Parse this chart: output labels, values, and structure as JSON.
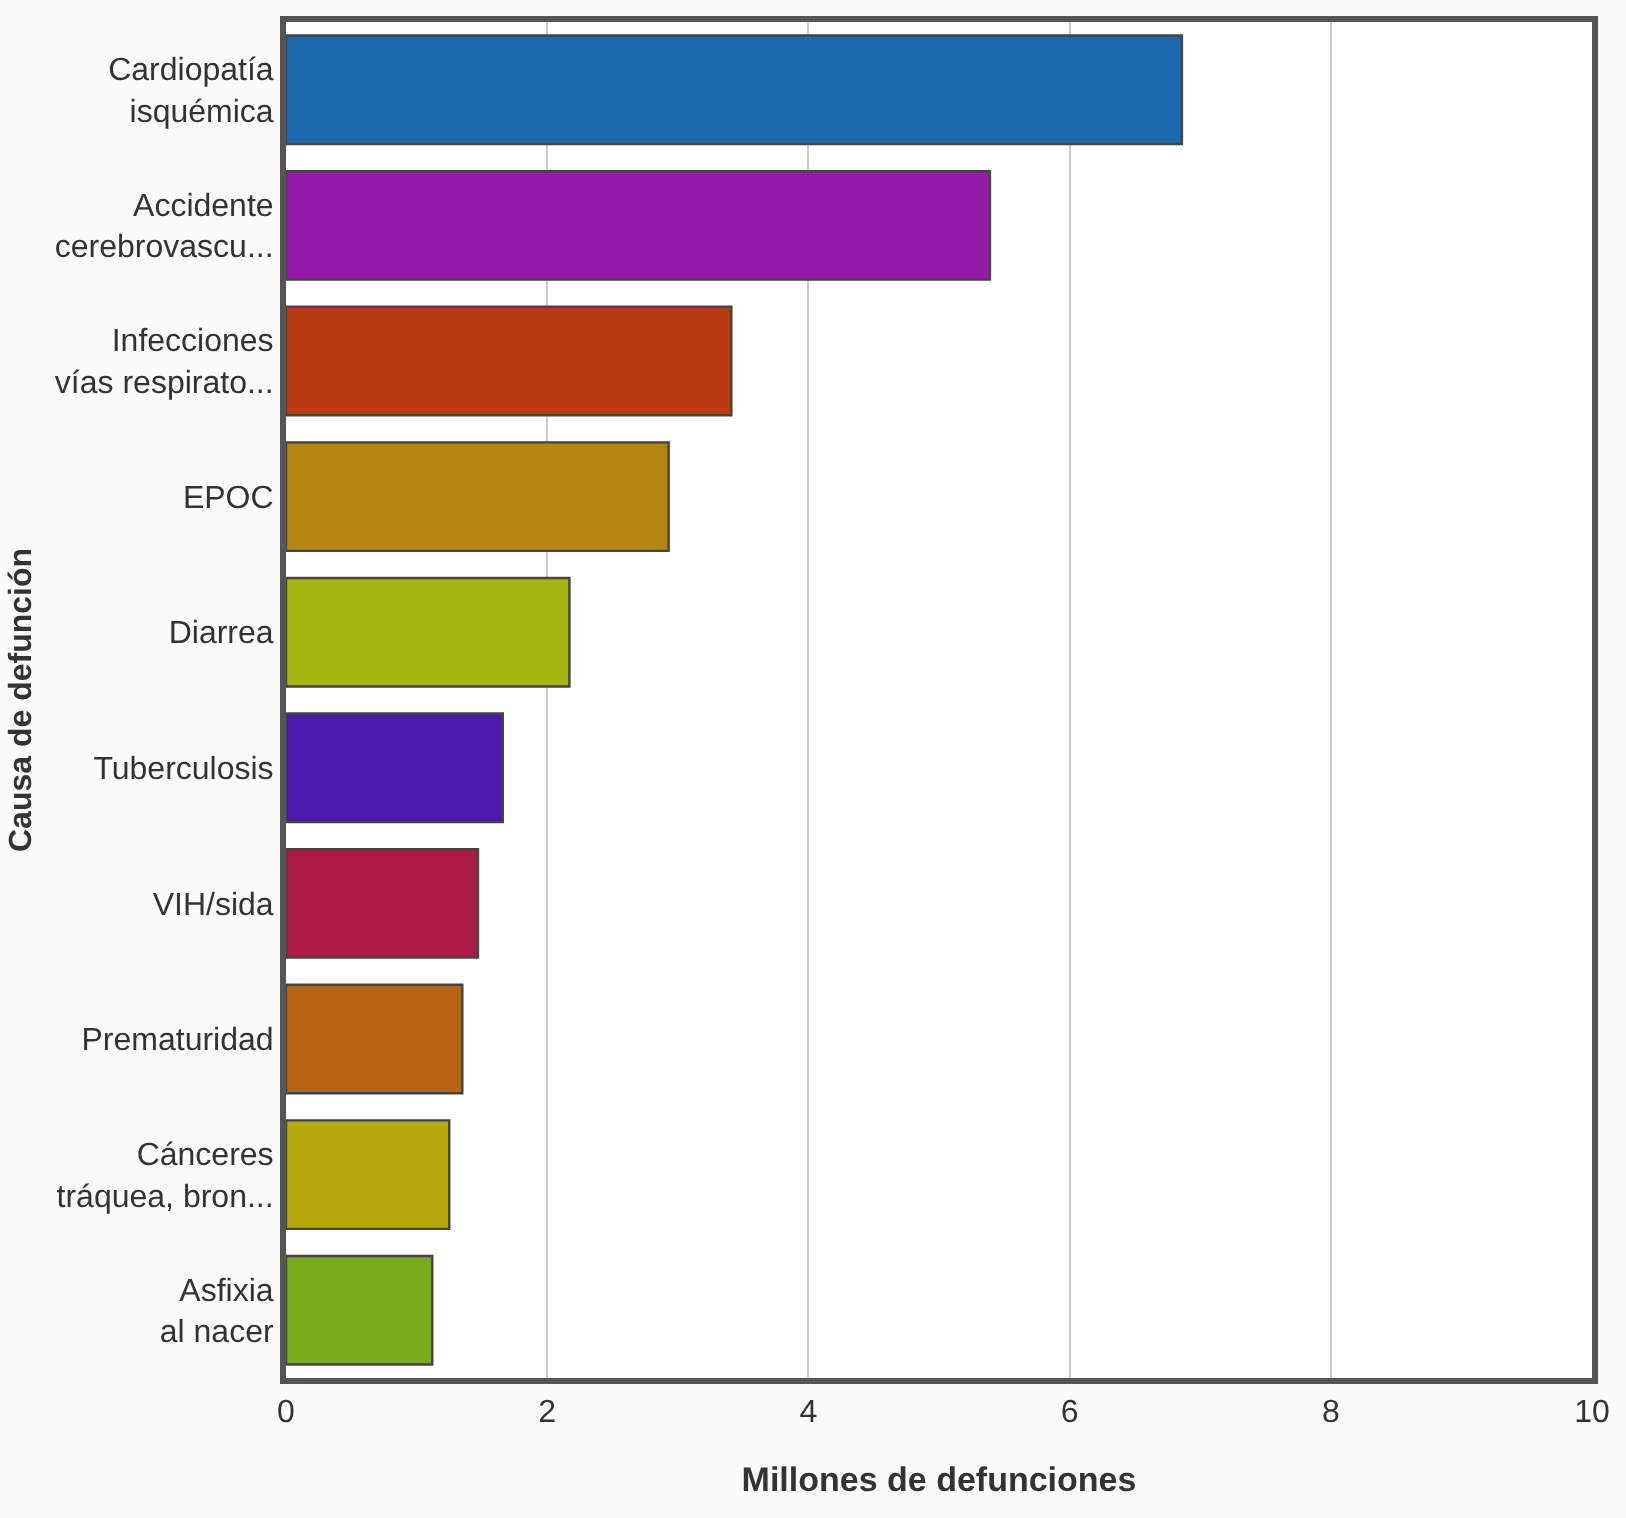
{
  "chart_data": {
    "type": "bar",
    "orientation": "horizontal",
    "xlabel": "Millones de defunciones",
    "ylabel": "Causa de defunción",
    "categories": [
      "Cardiopatía\nisquémica",
      "Accidente\ncerebrovascu...",
      "Infecciones\nvías respirato...",
      "EPOC",
      "Diarrea",
      "Tuberculosis",
      "VIH/sida",
      "Prematuridad",
      "Cánceres\ntráquea, bron...",
      "Asfixia\nal nacer"
    ],
    "values": [
      6.86,
      5.39,
      3.41,
      2.93,
      2.17,
      1.66,
      1.47,
      1.35,
      1.25,
      1.12
    ],
    "colors": [
      "#1b69aa",
      "#9419a9",
      "#b73a10",
      "#b48510",
      "#a2b510",
      "#4c19aa",
      "#ac1a47",
      "#b96410",
      "#b8a810",
      "#78aa1b"
    ],
    "xlim": [
      0,
      10
    ],
    "xticks": [
      0,
      2,
      4,
      6,
      8,
      10
    ],
    "grid": "x",
    "legend": false
  }
}
